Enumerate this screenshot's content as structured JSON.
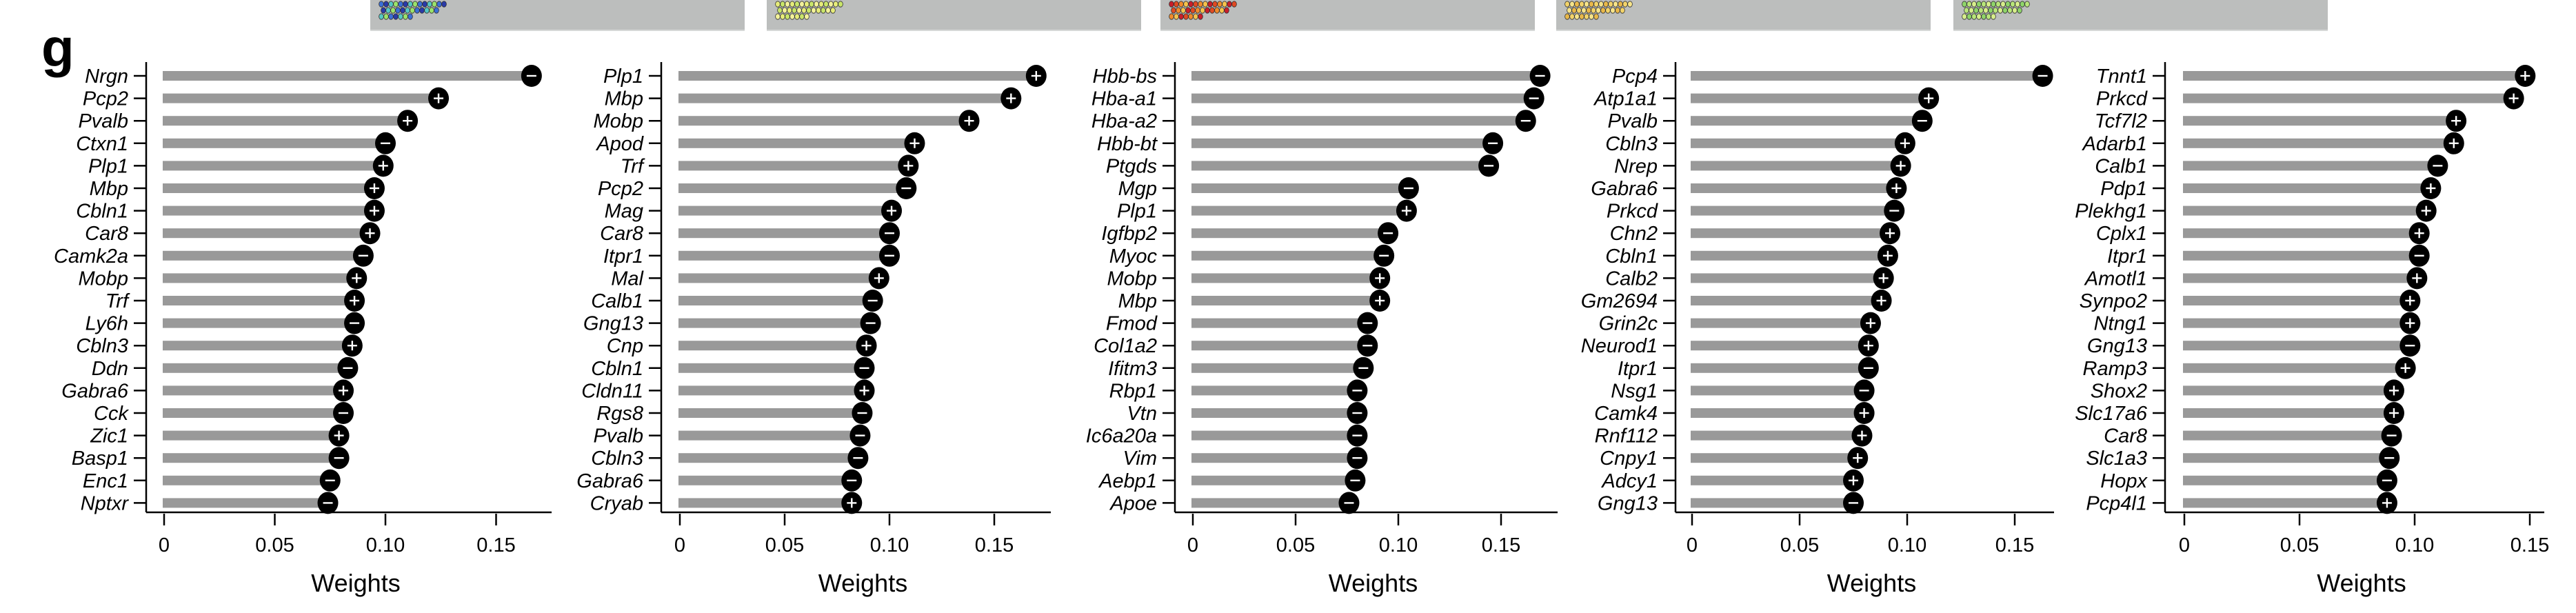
{
  "figure": {
    "panel_letter": "g",
    "thumbnail_strip": [
      {
        "name": "spatial-map-1",
        "palette": [
          "#3b6fd6",
          "#2a3aa8",
          "#55c7c4",
          "#9be36b",
          "#d86ee0"
        ]
      },
      {
        "name": "spatial-map-2",
        "palette": [
          "#e6ec7a",
          "#c9e56a",
          "#f3f29a",
          "#d86ee0"
        ]
      },
      {
        "name": "spatial-map-3",
        "palette": [
          "#c81e2a",
          "#e04a22",
          "#f08a2c",
          "#f5c24d",
          "#d86ee0"
        ]
      },
      {
        "name": "spatial-map-4",
        "palette": [
          "#f2d36a",
          "#f6e48a",
          "#e8b84a",
          "#d86ee0"
        ]
      },
      {
        "name": "spatial-map-5",
        "palette": [
          "#8fd46a",
          "#b8e57a",
          "#d7ee8c",
          "#d86ee0"
        ]
      }
    ]
  },
  "colors": {
    "bar": "#999999",
    "dot": "#000000",
    "sign": "#ffffff",
    "axis": "#000000"
  },
  "chart_data": [
    {
      "type": "bar",
      "subtype": "lollipop",
      "title": "",
      "xlabel": "Weights",
      "ylabel": "",
      "xlim": [
        0,
        0.17
      ],
      "xticks": [
        0,
        0.05,
        0.1,
        0.15
      ],
      "xtick_labels": [
        "0",
        "0.05",
        "0.10",
        "0.15"
      ],
      "grid": false,
      "categories": [
        "Nrgn",
        "Pcp2",
        "Pvalb",
        "Ctxn1",
        "Plp1",
        "Mbp",
        "Cbln1",
        "Car8",
        "Camk2a",
        "Mobp",
        "Trf",
        "Ly6h",
        "Cbln3",
        "Ddn",
        "Gabra6",
        "Cck",
        "Zic1",
        "Basp1",
        "Enc1",
        "Nptxr"
      ],
      "values": [
        0.166,
        0.124,
        0.11,
        0.1,
        0.099,
        0.095,
        0.095,
        0.093,
        0.09,
        0.087,
        0.086,
        0.086,
        0.085,
        0.083,
        0.081,
        0.081,
        0.079,
        0.079,
        0.075,
        0.074
      ],
      "signs": [
        "-",
        "+",
        "+",
        "-",
        "+",
        "+",
        "+",
        "+",
        "-",
        "+",
        "+",
        "-",
        "+",
        "-",
        "+",
        "-",
        "+",
        "-",
        "-",
        "-"
      ]
    },
    {
      "type": "bar",
      "subtype": "lollipop",
      "title": "",
      "xlabel": "Weights",
      "ylabel": "",
      "xlim": [
        0,
        0.177
      ],
      "xticks": [
        0,
        0.05,
        0.1,
        0.15
      ],
      "xtick_labels": [
        "0",
        "0.05",
        "0.10",
        "0.15"
      ],
      "grid": false,
      "categories": [
        "Plp1",
        "Mbp",
        "Mobp",
        "Apod",
        "Trf",
        "Pcp2",
        "Mag",
        "Car8",
        "Itpr1",
        "Mal",
        "Calb1",
        "Gng13",
        "Cnp",
        "Cbln1",
        "Cldn11",
        "Rgs8",
        "Pvalb",
        "Cbln3",
        "Gabra6",
        "Cryab"
      ],
      "values": [
        0.17,
        0.158,
        0.138,
        0.112,
        0.109,
        0.108,
        0.101,
        0.1,
        0.1,
        0.095,
        0.092,
        0.091,
        0.089,
        0.088,
        0.088,
        0.087,
        0.086,
        0.085,
        0.082,
        0.082
      ],
      "signs": [
        "+",
        "+",
        "+",
        "+",
        "+",
        "-",
        "+",
        "-",
        "-",
        "+",
        "-",
        "-",
        "+",
        "-",
        "+",
        "-",
        "-",
        "-",
        "-",
        "+"
      ]
    },
    {
      "type": "bar",
      "subtype": "lollipop",
      "title": "",
      "xlabel": "Weights",
      "ylabel": "",
      "xlim": [
        0,
        0.177
      ],
      "xticks": [
        0,
        0.05,
        0.1,
        0.15
      ],
      "xtick_labels": [
        "0",
        "0.05",
        "0.10",
        "0.15"
      ],
      "grid": false,
      "categories": [
        "Hbb-bs",
        "Hba-a1",
        "Hba-a2",
        "Hbb-bt",
        "Ptgds",
        "Mgp",
        "Plp1",
        "Igfbp2",
        "Myoc",
        "Mobp",
        "Mbp",
        "Fmod",
        "Col1a2",
        "Ifitm3",
        "Rbp1",
        "Vtn",
        "Ic6a20a",
        "Vim",
        "Aebp1",
        "Apoe"
      ],
      "values": [
        0.169,
        0.166,
        0.162,
        0.146,
        0.144,
        0.105,
        0.104,
        0.095,
        0.093,
        0.091,
        0.091,
        0.085,
        0.085,
        0.083,
        0.08,
        0.08,
        0.08,
        0.08,
        0.079,
        0.076
      ],
      "signs": [
        "-",
        "-",
        "-",
        "-",
        "-",
        "-",
        "+",
        "-",
        "-",
        "+",
        "+",
        "-",
        "-",
        "-",
        "-",
        "-",
        "-",
        "-",
        "-",
        "-"
      ]
    },
    {
      "type": "bar",
      "subtype": "lollipop",
      "title": "",
      "xlabel": "Weights",
      "ylabel": "",
      "xlim": [
        0,
        0.172
      ],
      "xticks": [
        0,
        0.05,
        0.1,
        0.15
      ],
      "xtick_labels": [
        "0",
        "0.05",
        "0.10",
        "0.15"
      ],
      "grid": false,
      "categories": [
        "Pcp4",
        "Atp1a1",
        "Pvalb",
        "Cbln3",
        "Nrep",
        "Gabra6",
        "Prkcd",
        "Chn2",
        "Cbln1",
        "Calb2",
        "Gm2694",
        "Grin2c",
        "Neurod1",
        "Itpr1",
        "Nsg1",
        "Camk4",
        "Rnf112",
        "Cnpy1",
        "Adcy1",
        "Gng13"
      ],
      "values": [
        0.163,
        0.11,
        0.107,
        0.099,
        0.097,
        0.095,
        0.094,
        0.092,
        0.091,
        0.089,
        0.088,
        0.083,
        0.082,
        0.082,
        0.08,
        0.08,
        0.079,
        0.077,
        0.075,
        0.075
      ],
      "signs": [
        "-",
        "+",
        "-",
        "+",
        "+",
        "+",
        "-",
        "+",
        "+",
        "+",
        "+",
        "+",
        "+",
        "-",
        "-",
        "+",
        "+",
        "+",
        "+",
        "-"
      ]
    },
    {
      "type": "bar",
      "subtype": "lollipop",
      "title": "",
      "xlabel": "Weights",
      "ylabel": "",
      "xlim": [
        0,
        0.155
      ],
      "xticks": [
        0,
        0.05,
        0.1,
        0.15
      ],
      "xtick_labels": [
        "0",
        "0.05",
        "0.10",
        "0.15"
      ],
      "grid": false,
      "categories": [
        "Tnnt1",
        "Prkcd",
        "Tcf7l2",
        "Adarb1",
        "Calb1",
        "Pdp1",
        "Plekhg1",
        "Cplx1",
        "Itpr1",
        "Amotl1",
        "Synpo2",
        "Ntng1",
        "Gng13",
        "Ramp3",
        "Shox2",
        "Slc17a6",
        "Car8",
        "Slc1a3",
        "Hopx",
        "Pcp4l1"
      ],
      "values": [
        0.148,
        0.143,
        0.118,
        0.117,
        0.11,
        0.107,
        0.105,
        0.102,
        0.102,
        0.101,
        0.098,
        0.098,
        0.098,
        0.096,
        0.091,
        0.091,
        0.09,
        0.089,
        0.088,
        0.088
      ],
      "signs": [
        "+",
        "+",
        "+",
        "+",
        "-",
        "+",
        "+",
        "+",
        "-",
        "+",
        "+",
        "+",
        "-",
        "+",
        "+",
        "+",
        "-",
        "-",
        "-",
        "+"
      ]
    }
  ]
}
